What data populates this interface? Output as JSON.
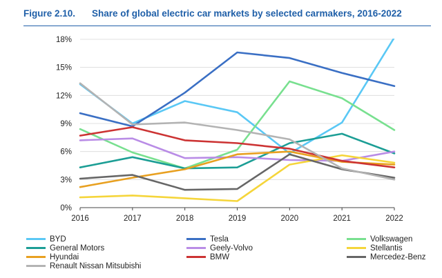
{
  "figure": {
    "number": "Figure 2.10.",
    "title": "Share of global electric car markets by selected carmakers, 2016-2022"
  },
  "chart_data": {
    "type": "line",
    "title": "Share of global electric car markets by selected carmakers, 2016-2022",
    "x": [
      "2016",
      "2017",
      "2018",
      "2019",
      "2020",
      "2021",
      "2022"
    ],
    "y_ticks": [
      "0%",
      "3%",
      "6%",
      "9%",
      "12%",
      "15%",
      "18%"
    ],
    "ylim": [
      0,
      18
    ],
    "y_unit": "%",
    "grid": "horizontal",
    "legend_position": "bottom",
    "series": [
      {
        "name": "BYD",
        "color": "#5ac8f5",
        "values": [
          13.2,
          9.0,
          11.4,
          10.2,
          5.8,
          9.1,
          18.2
        ]
      },
      {
        "name": "Tesla",
        "color": "#3a6fc4",
        "values": [
          10.1,
          8.7,
          12.3,
          16.6,
          16.0,
          14.4,
          13.0
        ]
      },
      {
        "name": "Volkswagen",
        "color": "#78e08f",
        "values": [
          8.4,
          5.9,
          4.2,
          6.2,
          13.5,
          11.7,
          8.3
        ]
      },
      {
        "name": "General Motors",
        "color": "#1c9e95",
        "values": [
          4.3,
          5.4,
          4.2,
          4.3,
          6.9,
          7.9,
          5.8
        ]
      },
      {
        "name": "Geely-Volvo",
        "color": "#b98ce6",
        "values": [
          7.2,
          7.4,
          5.3,
          5.4,
          5.1,
          5.0,
          6.0
        ]
      },
      {
        "name": "Stellantis",
        "color": "#f5d53a",
        "values": [
          1.1,
          1.3,
          1.0,
          0.7,
          4.6,
          5.6,
          4.8
        ]
      },
      {
        "name": "Hyundai",
        "color": "#e8a020",
        "values": [
          2.2,
          3.2,
          4.1,
          5.7,
          6.0,
          4.9,
          4.6
        ]
      },
      {
        "name": "BMW",
        "color": "#cc3333",
        "values": [
          7.7,
          8.6,
          7.2,
          6.9,
          6.3,
          5.0,
          4.3
        ]
      },
      {
        "name": "Mercedez-Benz",
        "color": "#666666",
        "values": [
          3.1,
          3.5,
          1.9,
          2.0,
          5.7,
          4.1,
          3.2
        ]
      },
      {
        "name": "Renault Nissan Mitsubishi",
        "color": "#b3b3b3",
        "values": [
          13.3,
          8.9,
          9.1,
          8.3,
          7.3,
          4.2,
          3.0
        ]
      }
    ]
  }
}
